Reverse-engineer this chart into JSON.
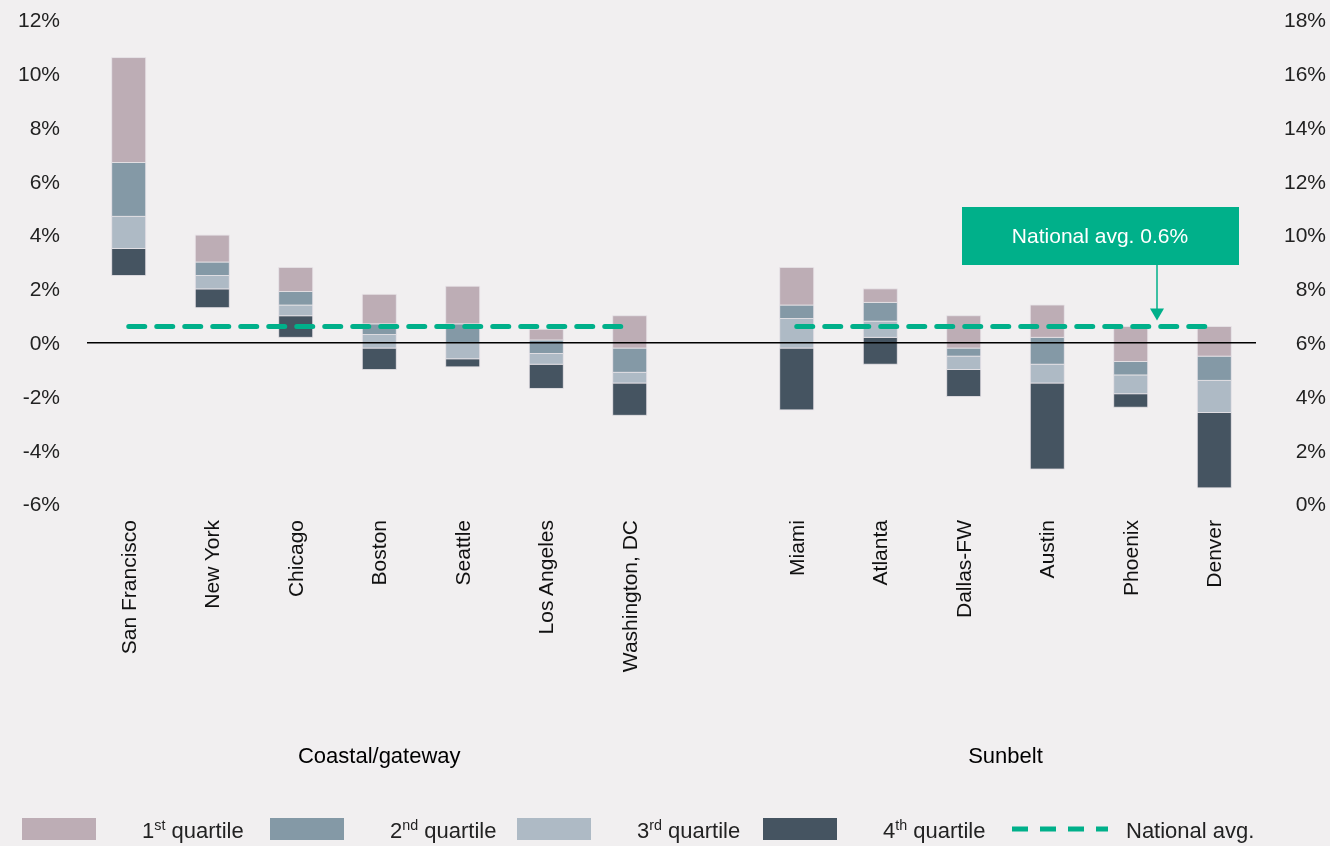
{
  "chart_data": {
    "type": "bar",
    "categories": [
      "San Francisco",
      "New York",
      "Chicago",
      "Boston",
      "Seattle",
      "Los Angeles",
      "Washington, DC",
      null,
      "Miami",
      "Atlanta",
      "Dallas-FW",
      "Austin",
      "Phoenix",
      "Denver"
    ],
    "series": [
      {
        "name": "4$^{th}$ quartile",
        "color": "#455461",
        "base": [
          2.5,
          1.3,
          0.2,
          -1.0,
          -0.9,
          -1.7,
          -2.7,
          null,
          -2.5,
          -0.8,
          -2.0,
          -4.7,
          -2.4,
          -5.4
        ],
        "values": [
          1.0,
          0.7,
          0.8,
          0.8,
          0.3,
          0.9,
          1.2,
          null,
          2.3,
          1.0,
          1.0,
          3.2,
          0.5,
          2.8
        ]
      },
      {
        "name": "3$^{rd}$ quartile",
        "color": "#aebac5",
        "base": [
          3.5,
          2.0,
          1.0,
          -0.2,
          -0.6,
          -0.8,
          -1.5,
          null,
          -0.2,
          0.2,
          -1.0,
          -1.5,
          -1.9,
          -2.6
        ],
        "values": [
          1.2,
          0.5,
          0.4,
          0.5,
          0.6,
          0.4,
          0.4,
          null,
          1.1,
          0.6,
          0.5,
          0.7,
          0.7,
          1.2
        ]
      },
      {
        "name": "2$^{nd}$ quartile",
        "color": "#8499a6",
        "base": [
          4.7,
          2.5,
          1.4,
          0.3,
          0.0,
          -0.4,
          -1.1,
          null,
          0.9,
          0.8,
          -0.5,
          -0.8,
          -1.2,
          -1.4
        ],
        "values": [
          2.0,
          0.5,
          0.5,
          0.4,
          0.7,
          0.5,
          0.9,
          null,
          0.5,
          0.7,
          0.3,
          1.0,
          0.5,
          0.9
        ]
      },
      {
        "name": "1$^{st}$ quartile",
        "color": "#bdadb5",
        "base": [
          6.7,
          3.0,
          1.9,
          0.7,
          0.7,
          0.1,
          -0.2,
          null,
          1.4,
          1.5,
          -0.2,
          0.2,
          -0.7,
          -0.5
        ],
        "values": [
          3.9,
          1.0,
          0.9,
          1.1,
          1.4,
          0.4,
          1.2,
          null,
          1.4,
          0.5,
          1.2,
          1.2,
          1.3,
          1.1
        ]
      },
      {
        "name": "National avg.",
        "type": "line",
        "color": "#00b08a",
        "values": [
          0.6,
          0.6,
          0.6,
          0.6,
          0.6,
          0.6,
          0.6,
          null,
          0.6,
          0.6,
          0.6,
          0.6,
          0.6,
          0.6
        ]
      }
    ],
    "line_style": "dashed",
    "ylim": [
      -6,
      12
    ],
    "yticks": [
      {
        "value": -6,
        "label": "-6%"
      },
      {
        "value": -4,
        "label": "-4%"
      },
      {
        "value": -2,
        "label": "-2%"
      },
      {
        "value": 0,
        "label": "0%"
      },
      {
        "value": 2,
        "label": "2%"
      },
      {
        "value": 4,
        "label": "4%"
      },
      {
        "value": 6,
        "label": "6%"
      },
      {
        "value": 8,
        "label": "8%"
      },
      {
        "value": 10,
        "label": "10%"
      },
      {
        "value": 12,
        "label": "12%"
      }
    ],
    "y2lim": [
      0,
      18
    ],
    "y2ticks": [
      {
        "value": 0,
        "label": "0%"
      },
      {
        "value": 2,
        "label": "2%"
      },
      {
        "value": 4,
        "label": "4%"
      },
      {
        "value": 6,
        "label": "6%"
      },
      {
        "value": 8,
        "label": "8%"
      },
      {
        "value": 10,
        "label": "10%"
      },
      {
        "value": 12,
        "label": "12%"
      },
      {
        "value": 14,
        "label": "14%"
      },
      {
        "value": 16,
        "label": "16%"
      },
      {
        "value": 18,
        "label": "18%"
      }
    ],
    "ref_lines": [
      {
        "axis": "y",
        "value": 0,
        "color": "#000000"
      }
    ],
    "legend": "bottom",
    "annotations": [
      "Coastal/gateway",
      "Sunbelt",
      "National avg. 0.6%"
    ]
  }
}
